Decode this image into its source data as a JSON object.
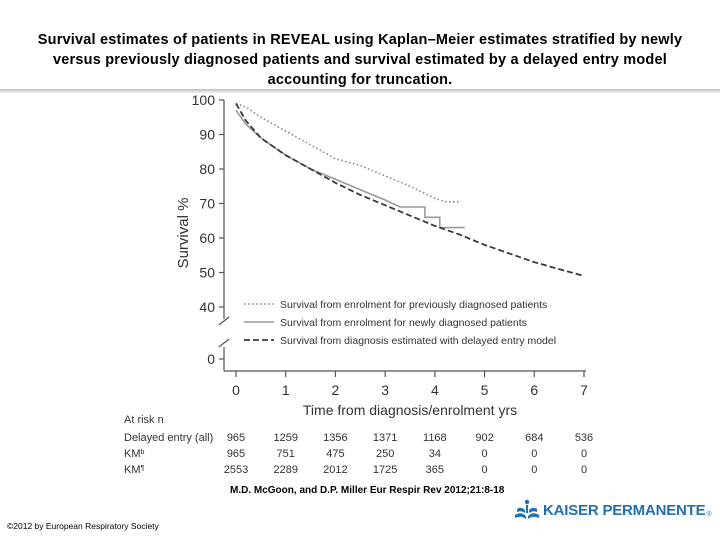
{
  "slide": {
    "title": "Survival estimates of patients in REVEAL using Kaplan–Meier estimates stratified by newly versus previously diagnosed patients and survival estimated by a delayed entry model accounting for truncation.",
    "citation": "M.D. McGoon, and D.P. Miller Eur Respir Rev 2012;21:8-18",
    "copyright": "©2012 by European Respiratory Society",
    "brand": "KAISER PERMANENTE",
    "brand_mark": "®"
  },
  "chart_data": {
    "type": "line",
    "title": "",
    "xlabel": "Time from diagnosis/enrolment yrs",
    "ylabel": "Survival %",
    "xlim": [
      0,
      7
    ],
    "ylim": [
      0,
      100
    ],
    "x_ticks": [
      0,
      1,
      2,
      3,
      4,
      5,
      6,
      7
    ],
    "y_ticks": [
      100,
      90,
      80,
      70,
      60,
      50,
      40,
      0
    ],
    "axis_break": "between 0 and 40",
    "colors": {
      "previously": "#888888",
      "newly": "#9a9a9a",
      "delayed": "#3a3a3a"
    },
    "series": [
      {
        "name": "Survival from enrolment for previously diagnosed patients",
        "style": "dotted",
        "x": [
          0,
          0.2,
          0.5,
          1,
          1.5,
          2,
          2.5,
          3,
          3.5,
          4,
          4.2,
          4.5
        ],
        "y": [
          99,
          98,
          95,
          91,
          87,
          83,
          81,
          78,
          75,
          71.5,
          70.5,
          70.5
        ]
      },
      {
        "name": "Survival from enrolment for newly diagnosed patients",
        "style": "solid",
        "x": [
          0,
          0.2,
          0.5,
          1,
          1.5,
          2,
          2.5,
          3,
          3.3,
          3.8,
          3.8,
          4.1,
          4.1,
          4.6
        ],
        "y": [
          97,
          93,
          89,
          84,
          80,
          77,
          74,
          71,
          69,
          69,
          66,
          66,
          63,
          63
        ]
      },
      {
        "name": "Survival from diagnosis estimated with delayed entry model",
        "style": "dashed",
        "x": [
          0,
          0.2,
          0.5,
          1,
          1.5,
          2,
          2.5,
          3,
          3.5,
          4,
          4.5,
          5,
          5.5,
          6,
          6.5,
          7
        ],
        "y": [
          99,
          94,
          89,
          84,
          80,
          76,
          72.5,
          69.5,
          66.5,
          63.5,
          61,
          58,
          55.5,
          53,
          51,
          49
        ]
      }
    ],
    "at_risk": {
      "header": "At risk n",
      "rows": [
        {
          "label": "Delayed entry (all)",
          "values": [
            "965",
            "1259",
            "1356",
            "1371",
            "1168",
            "902",
            "684",
            "536"
          ]
        },
        {
          "label": "KM",
          "sup": "b",
          "values": [
            "965",
            "751",
            "475",
            "250",
            "34",
            "0",
            "0",
            "0"
          ]
        },
        {
          "label": "KM",
          "sup": "¶",
          "values": [
            "2553",
            "2289",
            "2012",
            "1725",
            "365",
            "0",
            "0",
            "0"
          ]
        }
      ]
    }
  }
}
